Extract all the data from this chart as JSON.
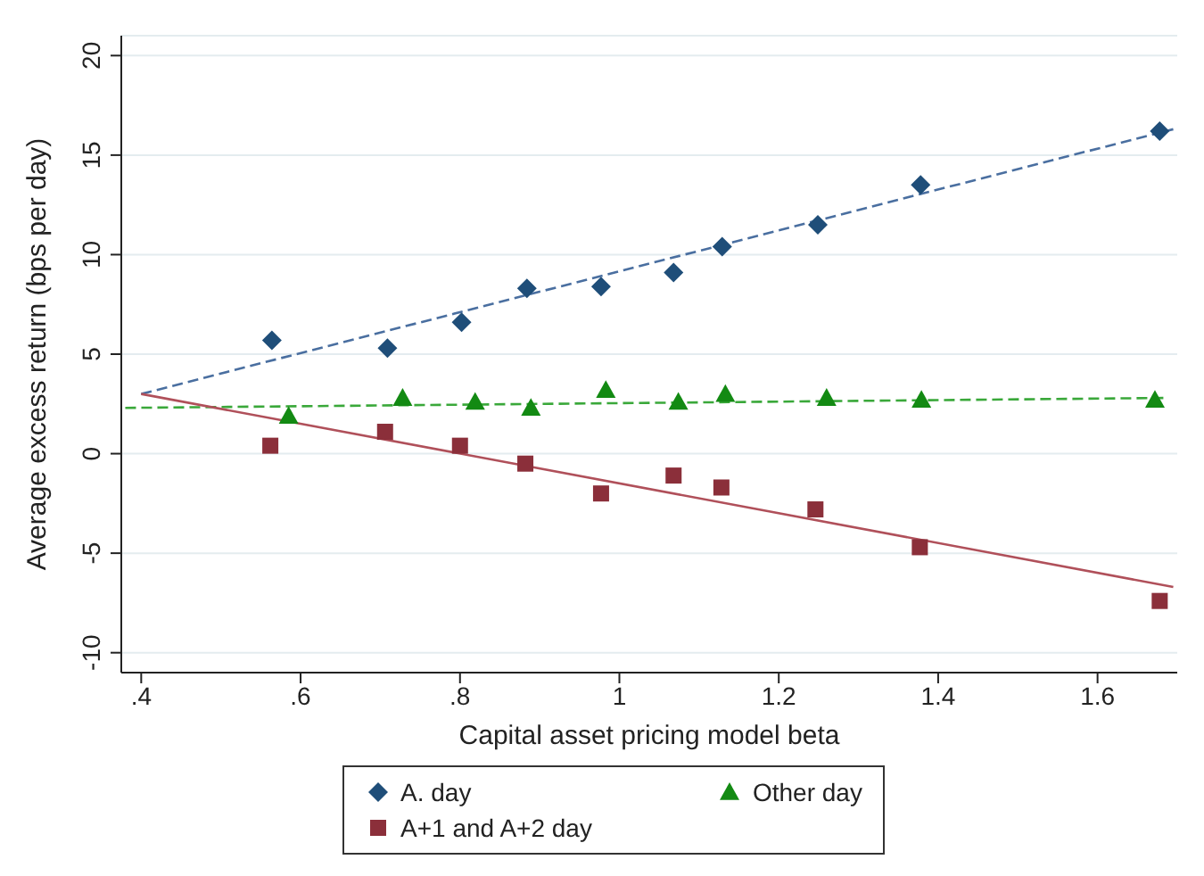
{
  "chart_data": {
    "type": "scatter",
    "xlabel": "Capital asset pricing model beta",
    "ylabel": "Average excess return (bps per day)",
    "xlim": [
      0.375,
      1.7
    ],
    "xticks": [
      {
        "value": 0.4,
        "label": ".4"
      },
      {
        "value": 0.6,
        "label": ".6"
      },
      {
        "value": 0.8,
        "label": ".8"
      },
      1,
      1.2,
      1.4,
      1.6
    ],
    "ylim": [
      -11,
      21
    ],
    "yticks": [
      -10,
      -5,
      0,
      5,
      10,
      15,
      20
    ],
    "grid": "y",
    "legend": "bottom",
    "series": [
      {
        "type": "scatter",
        "name": "A. day",
        "color": "#1f4e79",
        "marker": "diamond",
        "x": [
          0.564,
          0.709,
          0.802,
          0.884,
          0.977,
          1.068,
          1.129,
          1.249,
          1.378,
          1.678
        ],
        "values": [
          5.7,
          5.3,
          6.6,
          8.3,
          8.4,
          9.1,
          10.4,
          11.5,
          13.5,
          16.2
        ]
      },
      {
        "type": "scatter",
        "name": "Other day",
        "color": "#138a13",
        "marker": "triangle",
        "x": [
          0.585,
          0.728,
          0.819,
          0.889,
          0.983,
          1.074,
          1.133,
          1.26,
          1.379,
          1.672
        ],
        "values": [
          1.9,
          2.8,
          2.6,
          2.3,
          3.2,
          2.6,
          3.0,
          2.8,
          2.7,
          2.7
        ]
      },
      {
        "type": "scatter",
        "name": "A+1 and A+2 day",
        "color": "#8b2f3a",
        "marker": "square",
        "x": [
          0.562,
          0.706,
          0.8,
          0.882,
          0.977,
          1.068,
          1.128,
          1.246,
          1.377,
          1.678
        ],
        "values": [
          0.4,
          1.1,
          0.4,
          -0.5,
          -2.0,
          -1.1,
          -1.7,
          -2.8,
          -4.7,
          -7.4
        ]
      },
      {
        "type": "line",
        "color": "#4a6fa0",
        "line_style": "dashed",
        "x": [
          0.4,
          1.695
        ],
        "values": [
          3.0,
          16.3
        ]
      },
      {
        "type": "line",
        "color": "#3aa83a",
        "line_style": "dashed",
        "x": [
          0.38,
          1.684
        ],
        "values": [
          2.3,
          2.8
        ]
      },
      {
        "type": "line",
        "color": "#b0505a",
        "line_style": "solid",
        "x": [
          0.4,
          1.695
        ],
        "values": [
          3.0,
          -6.7
        ]
      }
    ]
  }
}
